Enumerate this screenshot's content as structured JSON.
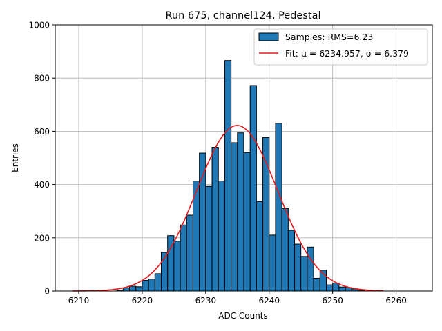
{
  "chart_data": {
    "type": "bar",
    "title": "Run 675, channel124, Pedestal",
    "xlabel": "ADC Counts",
    "ylabel": "Entries",
    "xlim": [
      6206.3,
      6265.7
    ],
    "ylim": [
      0,
      1000
    ],
    "xticks": [
      6210,
      6220,
      6230,
      6240,
      6250,
      6260
    ],
    "yticks": [
      0,
      200,
      400,
      600,
      800,
      1000
    ],
    "grid": true,
    "legend_position": "top-right",
    "bin_width": 1,
    "histogram": {
      "name": "Samples: RMS=6.23",
      "color": "#1f77b4",
      "edgecolor": "#000000",
      "bins": [
        {
          "x": 6216,
          "count": 3
        },
        {
          "x": 6217,
          "count": 12
        },
        {
          "x": 6218,
          "count": 18
        },
        {
          "x": 6219,
          "count": 16
        },
        {
          "x": 6220,
          "count": 40
        },
        {
          "x": 6221,
          "count": 45
        },
        {
          "x": 6222,
          "count": 65
        },
        {
          "x": 6223,
          "count": 145
        },
        {
          "x": 6224,
          "count": 208
        },
        {
          "x": 6225,
          "count": 187
        },
        {
          "x": 6226,
          "count": 248
        },
        {
          "x": 6227,
          "count": 285
        },
        {
          "x": 6228,
          "count": 413
        },
        {
          "x": 6229,
          "count": 518
        },
        {
          "x": 6230,
          "count": 393
        },
        {
          "x": 6231,
          "count": 540
        },
        {
          "x": 6232,
          "count": 413
        },
        {
          "x": 6233,
          "count": 866
        },
        {
          "x": 6234,
          "count": 557
        },
        {
          "x": 6235,
          "count": 594
        },
        {
          "x": 6236,
          "count": 520
        },
        {
          "x": 6237,
          "count": 772
        },
        {
          "x": 6238,
          "count": 336
        },
        {
          "x": 6239,
          "count": 577
        },
        {
          "x": 6240,
          "count": 210
        },
        {
          "x": 6241,
          "count": 630
        },
        {
          "x": 6242,
          "count": 310
        },
        {
          "x": 6243,
          "count": 228
        },
        {
          "x": 6244,
          "count": 176
        },
        {
          "x": 6245,
          "count": 130
        },
        {
          "x": 6246,
          "count": 165
        },
        {
          "x": 6247,
          "count": 48
        },
        {
          "x": 6248,
          "count": 78
        },
        {
          "x": 6249,
          "count": 23
        },
        {
          "x": 6250,
          "count": 30
        },
        {
          "x": 6251,
          "count": 15
        },
        {
          "x": 6252,
          "count": 13
        },
        {
          "x": 6253,
          "count": 8
        },
        {
          "x": 6254,
          "count": 3
        }
      ]
    },
    "fit": {
      "name": "Fit: μ = 6234.957, σ = 6.379",
      "color": "#e41a1c",
      "mu": 6234.957,
      "sigma": 6.379,
      "amplitude": 622,
      "x_range": [
        6209,
        6258
      ]
    }
  }
}
